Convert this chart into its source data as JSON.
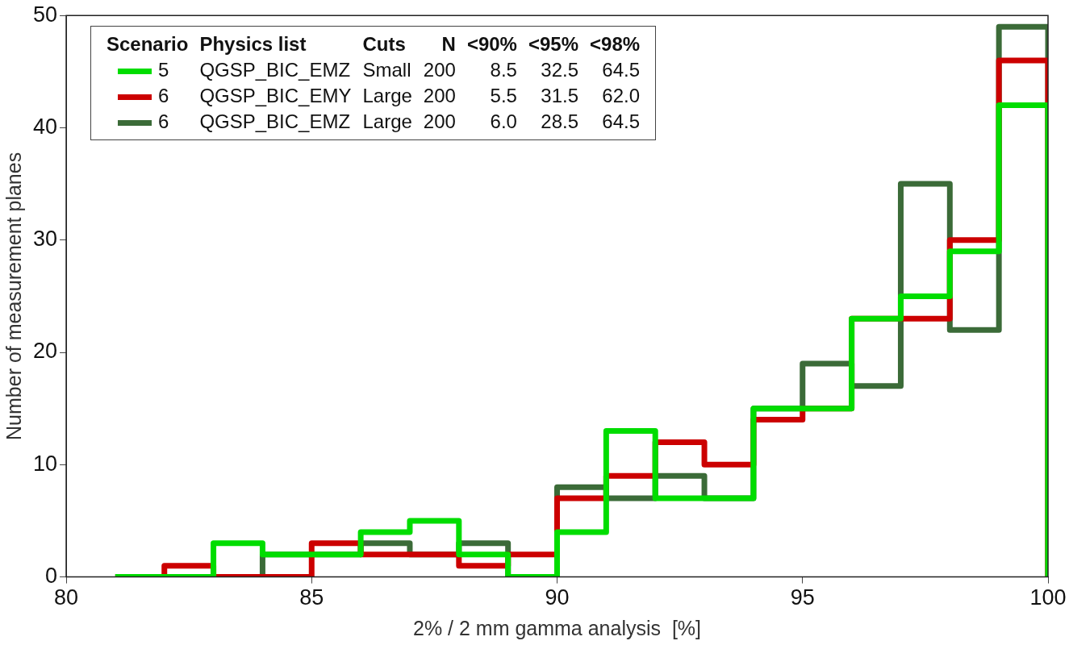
{
  "chart_data": {
    "type": "histogram",
    "xlabel": "2% / 2 mm gamma analysis  [%]",
    "ylabel": "Number of measurement planes",
    "bins": [
      81,
      82,
      83,
      84,
      85,
      86,
      87,
      88,
      89,
      90,
      91,
      92,
      93,
      94,
      95,
      96,
      97,
      98,
      99,
      100
    ],
    "series": [
      {
        "name": "5",
        "color": "#00dd00",
        "values": [
          0,
          0,
          3,
          2,
          2,
          4,
          5,
          2,
          0,
          4,
          13,
          7,
          7,
          15,
          15,
          23,
          25,
          29,
          42
        ]
      },
      {
        "name": "6",
        "color": "#cc0000",
        "values": [
          0,
          1,
          0,
          0,
          3,
          2,
          2,
          1,
          2,
          7,
          9,
          12,
          10,
          14,
          15,
          23,
          23,
          30,
          46
        ]
      },
      {
        "name": "6",
        "color": "#3b6b38",
        "values": [
          0,
          0,
          0,
          2,
          2,
          3,
          2,
          3,
          0,
          8,
          7,
          9,
          7,
          15,
          19,
          17,
          35,
          22,
          49
        ]
      }
    ],
    "xlim": [
      80,
      100
    ],
    "xticks": [
      80,
      85,
      90,
      95,
      100
    ],
    "ylim": [
      0,
      50
    ],
    "yticks": [
      0,
      10,
      20,
      30,
      40,
      50
    ],
    "grid": false,
    "legend": "top left",
    "annotations": [
      "Scenario",
      "Physics list",
      "Cuts",
      "N",
      "<90%",
      "<95%",
      "<98%",
      "QGSP_BIC_EMZ",
      "Small",
      "200",
      "8.5",
      "32.5",
      "64.5",
      "QGSP_BIC_EMY",
      "Large",
      "200",
      "5.5",
      "31.5",
      "62.0",
      "QGSP_BIC_EMZ",
      "Large",
      "200",
      "6.0",
      "28.5",
      "64.5"
    ]
  }
}
